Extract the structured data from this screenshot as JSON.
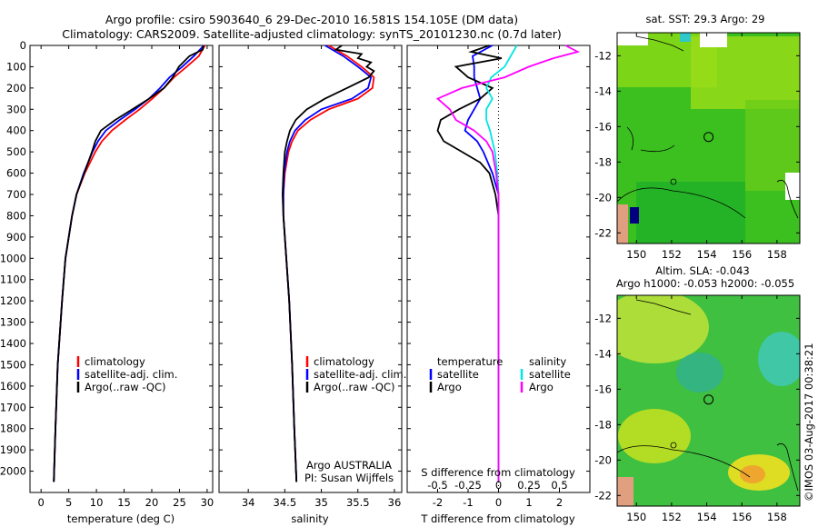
{
  "header": {
    "line1": "Argo profile: csiro 5903640_6 29-Dec-2010 16.581S 154.105E (DM data)",
    "line2": "Climatology: CARS2009. Satellite-adjusted climatology: synTS_20101230.nc (0.7d later)"
  },
  "colors": {
    "climatology": "#ff0000",
    "satellite": "#0000ff",
    "argo": "#000000",
    "cyan": "#00e5e5",
    "magenta": "#ff00ff",
    "land": "#e0a080",
    "sst_bg": "#3cc020",
    "sla_bg": "#40c040"
  },
  "chart_data": [
    {
      "type": "line",
      "name": "temperature",
      "xlabel": "temperature (deg C)",
      "ylabel": "",
      "xlim": [
        -2,
        31
      ],
      "ylim": [
        2100,
        0
      ],
      "x_ticks": [
        0,
        5,
        10,
        15,
        20,
        25,
        30
      ],
      "y_ticks": [
        0,
        100,
        200,
        300,
        400,
        500,
        600,
        700,
        800,
        900,
        1000,
        1100,
        1200,
        1300,
        1400,
        1500,
        1600,
        1700,
        1800,
        1900,
        2000
      ],
      "legend": [
        "climatology",
        "satellite-adj. clim.",
        "Argo(..raw -QC)"
      ],
      "series": [
        {
          "name": "climatology",
          "depth": [
            0,
            50,
            100,
            150,
            200,
            250,
            300,
            350,
            400,
            450,
            500,
            600,
            700,
            800,
            1000,
            1200,
            1500,
            1800,
            2050
          ],
          "values": [
            29.6,
            28.5,
            26.3,
            24.0,
            22.2,
            20.1,
            17.8,
            15.2,
            12.8,
            11.0,
            9.8,
            7.9,
            6.4,
            5.6,
            4.4,
            3.8,
            3.0,
            2.6,
            2.3
          ]
        },
        {
          "name": "satellite-adj. clim.",
          "depth": [
            0,
            50,
            100,
            150,
            200,
            250,
            300,
            350,
            400,
            450,
            500,
            600,
            700,
            800,
            1000,
            1200,
            1500,
            1800,
            2050
          ],
          "values": [
            29.4,
            27.6,
            25.5,
            23.2,
            21.5,
            19.5,
            17.0,
            14.2,
            11.7,
            10.3,
            9.3,
            7.7,
            6.4,
            5.6,
            4.4,
            3.8,
            3.0,
            2.6,
            2.3
          ]
        },
        {
          "name": "Argo(..raw -QC)",
          "depth": [
            0,
            20,
            50,
            100,
            150,
            200,
            250,
            300,
            350,
            400,
            450,
            500,
            600,
            700,
            800,
            1000,
            1200,
            1500,
            1800,
            2050
          ],
          "values": [
            29.3,
            29.2,
            26.8,
            24.9,
            23.8,
            22.2,
            19.5,
            16.5,
            13.4,
            10.8,
            9.8,
            9.2,
            7.8,
            6.4,
            5.6,
            4.4,
            3.8,
            3.0,
            2.6,
            2.3
          ]
        }
      ]
    },
    {
      "type": "line",
      "name": "salinity",
      "xlabel": "salinity",
      "xlim": [
        33.6,
        36.1
      ],
      "ylim": [
        2100,
        0
      ],
      "x_ticks": [
        34,
        34.5,
        35,
        35.5,
        36
      ],
      "legend": [
        "climatology",
        "satellite-adj. clim.",
        "Argo(..raw -QC)"
      ],
      "annotation": [
        "Argo AUSTRALIA",
        "PI: Susan Wijffels"
      ],
      "series": [
        {
          "name": "climatology",
          "depth": [
            0,
            50,
            100,
            150,
            200,
            250,
            300,
            350,
            400,
            450,
            500,
            600,
            700,
            800,
            1000,
            1200,
            1500,
            1800,
            2050
          ],
          "values": [
            35.1,
            35.35,
            35.55,
            35.72,
            35.7,
            35.5,
            35.1,
            34.85,
            34.68,
            34.6,
            34.55,
            34.5,
            34.48,
            34.48,
            34.52,
            34.56,
            34.6,
            34.63,
            34.66
          ]
        },
        {
          "name": "satellite-adj. clim.",
          "depth": [
            0,
            50,
            100,
            150,
            200,
            250,
            300,
            350,
            400,
            450,
            500,
            600,
            700,
            800,
            1000,
            1200,
            1500,
            1800,
            2050
          ],
          "values": [
            35.05,
            35.3,
            35.5,
            35.68,
            35.64,
            35.42,
            35.0,
            34.78,
            34.64,
            34.57,
            34.53,
            34.49,
            34.48,
            34.48,
            34.52,
            34.56,
            34.6,
            34.63,
            34.66
          ]
        },
        {
          "name": "Argo(..raw -QC)",
          "depth": [
            0,
            20,
            40,
            60,
            80,
            100,
            120,
            150,
            200,
            250,
            300,
            350,
            400,
            450,
            500,
            600,
            700,
            800,
            1000,
            1200,
            1500,
            1800,
            2050
          ],
          "values": [
            35.28,
            35.2,
            35.55,
            35.5,
            35.68,
            35.62,
            35.72,
            35.65,
            35.35,
            35.05,
            34.8,
            34.65,
            34.57,
            34.53,
            34.5,
            34.48,
            34.47,
            34.48,
            34.52,
            34.56,
            34.6,
            34.63,
            34.66
          ]
        }
      ]
    },
    {
      "type": "line",
      "name": "difference",
      "xlabel": "T difference from climatology",
      "xlim": [
        -3,
        3
      ],
      "ylim": [
        2100,
        0
      ],
      "x_ticks": [
        -2,
        -1,
        0,
        1,
        2
      ],
      "top_label": "S difference from climatology",
      "top_ticks": [
        "-0.5",
        "-0.25",
        "0",
        "0.25",
        "0.5"
      ],
      "legend_temperature": "temperature",
      "legend_salinity": "salinity",
      "legend_satellite": "satellite",
      "legend_argo": "Argo",
      "series": [
        {
          "name": "T satellite",
          "depth": [
            0,
            50,
            100,
            150,
            200,
            250,
            300,
            350,
            400,
            450,
            500,
            600,
            700,
            800,
            1000,
            1500,
            2050
          ],
          "values": [
            -0.2,
            -0.85,
            -0.8,
            -0.8,
            -0.7,
            -0.6,
            -0.8,
            -1.0,
            -1.1,
            -0.7,
            -0.5,
            -0.2,
            0.0,
            0.0,
            0.0,
            0.0,
            0.0
          ]
        },
        {
          "name": "T Argo",
          "depth": [
            0,
            30,
            60,
            100,
            150,
            200,
            250,
            300,
            350,
            400,
            450,
            500,
            550,
            600,
            700,
            800,
            1000,
            1500,
            2050
          ],
          "values": [
            -0.3,
            -0.9,
            0.1,
            -1.4,
            -1.0,
            -0.2,
            -0.6,
            -1.3,
            -1.9,
            -2.0,
            -1.8,
            -1.2,
            -0.6,
            -0.3,
            -0.1,
            0.0,
            0.0,
            0.0,
            0.0
          ]
        },
        {
          "name": "S satellite",
          "depth": [
            0,
            50,
            100,
            150,
            200,
            250,
            300,
            350,
            400,
            450,
            500,
            600,
            700,
            800,
            1000,
            1500,
            2050
          ],
          "values": [
            0.15,
            0.1,
            0.05,
            -0.06,
            -0.1,
            -0.05,
            -0.1,
            -0.1,
            -0.07,
            -0.05,
            -0.03,
            -0.01,
            0.0,
            0.0,
            0.0,
            0.0,
            0.0
          ]
        },
        {
          "name": "S Argo",
          "depth": [
            0,
            30,
            60,
            100,
            150,
            200,
            250,
            300,
            350,
            400,
            450,
            500,
            600,
            700,
            800,
            1000,
            1500,
            2050
          ],
          "values": [
            0.55,
            0.65,
            0.45,
            0.25,
            0.05,
            -0.3,
            -0.5,
            -0.4,
            -0.35,
            -0.2,
            -0.1,
            -0.05,
            -0.02,
            0.0,
            0.0,
            0.0,
            0.0,
            0.0
          ]
        }
      ]
    },
    {
      "type": "heatmap",
      "name": "sst map",
      "title": "sat. SST: 29.3 Argo: 29",
      "x_ticks": [
        "150",
        "152",
        "154",
        "156",
        "158"
      ],
      "y_ticks": [
        "-12",
        "-14",
        "-16",
        "-18",
        "-20",
        "-22"
      ],
      "xlim": [
        148.9,
        159.3
      ],
      "ylim": [
        -22.6,
        -10.7
      ],
      "argo_position": [
        154.105,
        -16.581
      ]
    },
    {
      "type": "heatmap",
      "name": "sla map",
      "title_line1": "Altim. SLA: -0.043",
      "title_line2": "Argo h1000: -0.053 h2000: -0.055",
      "x_ticks": [
        "150",
        "152",
        "154",
        "156",
        "158"
      ],
      "y_ticks": [
        "-12",
        "-14",
        "-16",
        "-18",
        "-20",
        "-22"
      ],
      "xlim": [
        148.9,
        159.3
      ],
      "ylim": [
        -22.6,
        -10.7
      ],
      "argo_position": [
        154.105,
        -16.581
      ]
    }
  ],
  "footer": {
    "stamp": "©IMOS 03-Aug-2017 00:38:21"
  }
}
